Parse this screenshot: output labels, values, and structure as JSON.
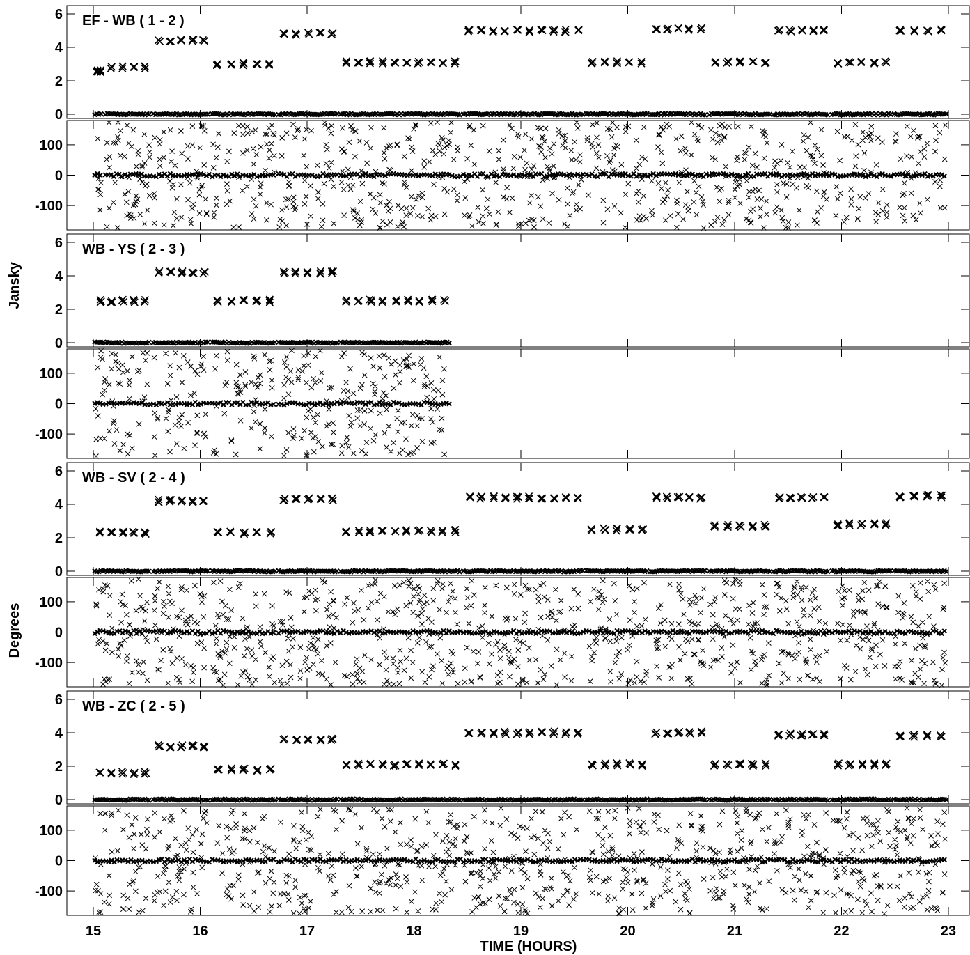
{
  "chart_data": {
    "type": "scatter",
    "marker": "x",
    "color": "#000000",
    "xlabel": "TIME (HOURS)",
    "x_ticks": [
      "15",
      "16",
      "17",
      "18",
      "19",
      "20",
      "21",
      "22",
      "23"
    ],
    "xlim": [
      15,
      23
    ],
    "ylabel_amplitude": "Jansky",
    "ylabel_phase": "Degrees",
    "amp_ticks": [
      "0",
      "2",
      "4",
      "6"
    ],
    "amp_ylim": [
      0,
      6.5
    ],
    "phase_ticks": [
      "100",
      "0",
      "-100"
    ],
    "phase_ylim": [
      -180,
      180
    ],
    "panels": [
      {
        "title": "EF - WB ( 1 - 2 )",
        "segments": [
          {
            "x_start": 15.0,
            "x_end": 15.1,
            "amplitude": 2.6
          },
          {
            "x_start": 15.1,
            "x_end": 15.55,
            "amplitude": 2.8
          },
          {
            "x_start": 15.55,
            "x_end": 16.1,
            "amplitude": 4.4
          },
          {
            "x_start": 16.1,
            "x_end": 16.72,
            "amplitude": 3.0
          },
          {
            "x_start": 16.72,
            "x_end": 17.3,
            "amplitude": 4.8
          },
          {
            "x_start": 17.3,
            "x_end": 18.45,
            "amplitude": 3.1
          },
          {
            "x_start": 18.45,
            "x_end": 19.6,
            "amplitude": 5.0
          },
          {
            "x_start": 19.6,
            "x_end": 20.2,
            "amplitude": 3.1
          },
          {
            "x_start": 20.2,
            "x_end": 20.75,
            "amplitude": 5.1
          },
          {
            "x_start": 20.75,
            "x_end": 21.35,
            "amplitude": 3.1
          },
          {
            "x_start": 21.35,
            "x_end": 21.9,
            "amplitude": 5.0
          },
          {
            "x_start": 21.9,
            "x_end": 22.48,
            "amplitude": 3.1
          },
          {
            "x_start": 22.48,
            "x_end": 23.0,
            "amplitude": 5.0
          }
        ]
      },
      {
        "title": "WB - YS ( 2 - 3 )",
        "segments": [
          {
            "x_start": 15.0,
            "x_end": 15.55,
            "amplitude": 2.5
          },
          {
            "x_start": 15.55,
            "x_end": 16.1,
            "amplitude": 4.2
          },
          {
            "x_start": 16.1,
            "x_end": 16.72,
            "amplitude": 2.5
          },
          {
            "x_start": 16.72,
            "x_end": 17.3,
            "amplitude": 4.2
          },
          {
            "x_start": 17.3,
            "x_end": 18.35,
            "amplitude": 2.5
          }
        ]
      },
      {
        "title": "WB - SV ( 2 - 4 )",
        "segments": [
          {
            "x_start": 15.0,
            "x_end": 15.55,
            "amplitude": 2.3
          },
          {
            "x_start": 15.55,
            "x_end": 16.1,
            "amplitude": 4.2
          },
          {
            "x_start": 16.1,
            "x_end": 16.72,
            "amplitude": 2.3
          },
          {
            "x_start": 16.72,
            "x_end": 17.3,
            "amplitude": 4.3
          },
          {
            "x_start": 17.3,
            "x_end": 18.45,
            "amplitude": 2.4
          },
          {
            "x_start": 18.45,
            "x_end": 19.6,
            "amplitude": 4.4
          },
          {
            "x_start": 19.6,
            "x_end": 20.2,
            "amplitude": 2.5
          },
          {
            "x_start": 20.2,
            "x_end": 20.75,
            "amplitude": 4.4
          },
          {
            "x_start": 20.75,
            "x_end": 21.35,
            "amplitude": 2.7
          },
          {
            "x_start": 21.35,
            "x_end": 21.9,
            "amplitude": 4.4
          },
          {
            "x_start": 21.9,
            "x_end": 22.48,
            "amplitude": 2.8
          },
          {
            "x_start": 22.48,
            "x_end": 23.0,
            "amplitude": 4.5
          }
        ]
      },
      {
        "title": "WB - ZC ( 2 - 5 )",
        "segments": [
          {
            "x_start": 15.0,
            "x_end": 15.55,
            "amplitude": 1.6
          },
          {
            "x_start": 15.55,
            "x_end": 16.1,
            "amplitude": 3.2
          },
          {
            "x_start": 16.1,
            "x_end": 16.72,
            "amplitude": 1.8
          },
          {
            "x_start": 16.72,
            "x_end": 17.3,
            "amplitude": 3.6
          },
          {
            "x_start": 17.3,
            "x_end": 18.45,
            "amplitude": 2.1
          },
          {
            "x_start": 18.45,
            "x_end": 19.6,
            "amplitude": 4.0
          },
          {
            "x_start": 19.6,
            "x_end": 20.2,
            "amplitude": 2.1
          },
          {
            "x_start": 20.2,
            "x_end": 20.75,
            "amplitude": 4.0
          },
          {
            "x_start": 20.75,
            "x_end": 21.35,
            "amplitude": 2.1
          },
          {
            "x_start": 21.35,
            "x_end": 21.9,
            "amplitude": 3.9
          },
          {
            "x_start": 21.9,
            "x_end": 22.48,
            "amplitude": 2.1
          },
          {
            "x_start": 22.48,
            "x_end": 23.0,
            "amplitude": 3.8
          }
        ]
      }
    ]
  }
}
